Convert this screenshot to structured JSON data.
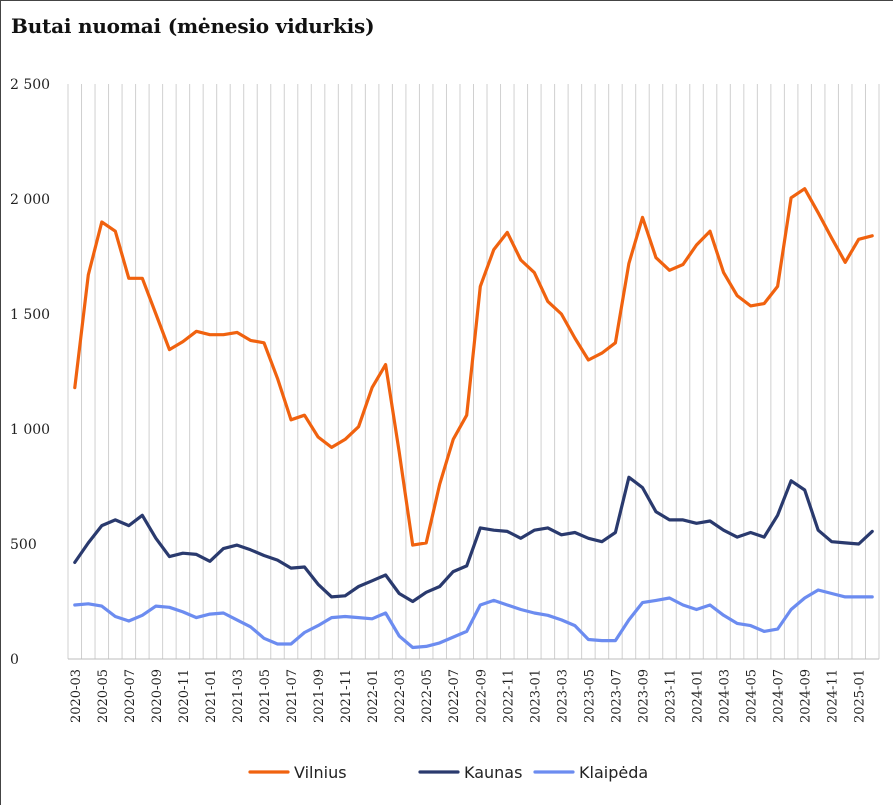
{
  "chart_data": {
    "type": "line",
    "title": "Butai nuomai (mėnesio vidurkis)",
    "ylim": [
      0,
      2500
    ],
    "yticks": [
      0,
      500,
      1000,
      1500,
      2000,
      2500
    ],
    "ytick_labels": [
      "0",
      "500",
      "1 000",
      "1 500",
      "2 000",
      "2 500"
    ],
    "grid": "vertical",
    "legend_position": "bottom",
    "categories": [
      "2020-03",
      "2020-04",
      "2020-05",
      "2020-06",
      "2020-07",
      "2020-08",
      "2020-09",
      "2020-10",
      "2020-11",
      "2020-12",
      "2021-01",
      "2021-02",
      "2021-03",
      "2021-04",
      "2021-05",
      "2021-06",
      "2021-07",
      "2021-08",
      "2021-09",
      "2021-10",
      "2021-11",
      "2021-12",
      "2022-01",
      "2022-02",
      "2022-03",
      "2022-04",
      "2022-05",
      "2022-06",
      "2022-07",
      "2022-08",
      "2022-09",
      "2022-10",
      "2022-11",
      "2022-12",
      "2023-01",
      "2023-02",
      "2023-03",
      "2023-04",
      "2023-05",
      "2023-06",
      "2023-07",
      "2023-08",
      "2023-09",
      "2023-10",
      "2023-11",
      "2023-12",
      "2024-01",
      "2024-02",
      "2024-03",
      "2024-04",
      "2024-05",
      "2024-06",
      "2024-07",
      "2024-08",
      "2024-09",
      "2024-10",
      "2024-11",
      "2024-12",
      "2025-01",
      "2025-02"
    ],
    "xtick_labels": [
      "2020-03",
      "2020-05",
      "2020-07",
      "2020-09",
      "2020-11",
      "2021-01",
      "2021-03",
      "2021-05",
      "2021-07",
      "2021-09",
      "2021-11",
      "2022-01",
      "2022-03",
      "2022-05",
      "2022-07",
      "2022-09",
      "2022-11",
      "2023-01",
      "2023-03",
      "2023-05",
      "2023-07",
      "2023-09",
      "2023-11",
      "2024-01",
      "2024-03",
      "2024-05",
      "2024-07",
      "2024-09",
      "2024-11",
      "2025-01"
    ],
    "series": [
      {
        "name": "Vilnius",
        "color": "#f0620f",
        "values": [
          1180,
          1670,
          1900,
          1860,
          1655,
          1655,
          1500,
          1345,
          1380,
          1425,
          1410,
          1410,
          1420,
          1385,
          1375,
          1220,
          1040,
          1060,
          965,
          920,
          955,
          1010,
          1180,
          1280,
          900,
          495,
          505,
          760,
          955,
          1060,
          1620,
          1780,
          1855,
          1735,
          1680,
          1555,
          1500,
          1395,
          1300,
          1330,
          1375,
          1720,
          1920,
          1745,
          1690,
          1715,
          1800,
          1860,
          1680,
          1580,
          1535,
          1545,
          1620,
          2005,
          2045,
          1940,
          1830,
          1725,
          1825,
          1840
        ]
      },
      {
        "name": "Kaunas",
        "color": "#2a3a6e",
        "values": [
          420,
          505,
          580,
          605,
          580,
          625,
          525,
          445,
          460,
          455,
          425,
          480,
          495,
          475,
          450,
          430,
          395,
          400,
          325,
          270,
          275,
          315,
          340,
          365,
          285,
          250,
          290,
          315,
          380,
          405,
          570,
          560,
          555,
          525,
          560,
          570,
          540,
          550,
          525,
          510,
          550,
          790,
          745,
          640,
          605,
          605,
          590,
          600,
          560,
          530,
          550,
          530,
          625,
          775,
          735,
          560,
          510,
          505,
          500,
          555
        ]
      },
      {
        "name": "Klaipėda",
        "color": "#6c8cf0",
        "values": [
          235,
          240,
          230,
          185,
          165,
          190,
          230,
          225,
          205,
          180,
          195,
          200,
          170,
          140,
          90,
          65,
          65,
          115,
          145,
          180,
          185,
          180,
          175,
          200,
          100,
          50,
          55,
          70,
          95,
          120,
          235,
          255,
          235,
          215,
          200,
          190,
          170,
          145,
          85,
          80,
          80,
          170,
          245,
          255,
          265,
          235,
          215,
          235,
          190,
          155,
          145,
          120,
          130,
          215,
          265,
          300,
          285,
          270,
          270,
          270
        ]
      }
    ]
  }
}
